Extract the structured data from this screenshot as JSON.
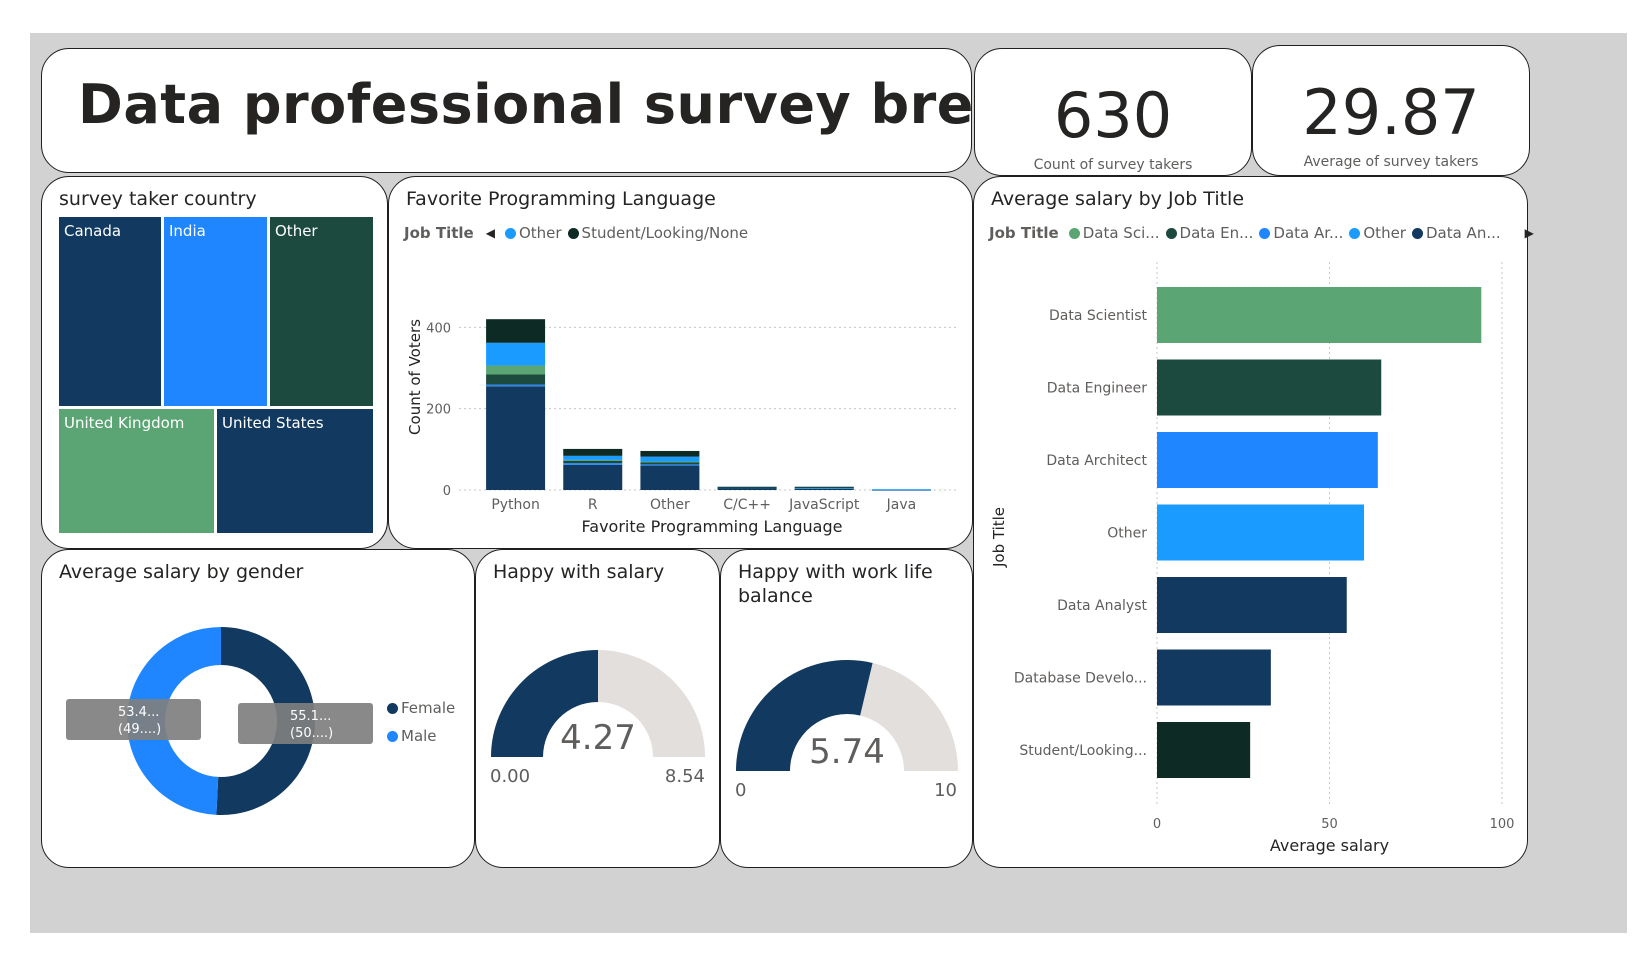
{
  "header": {
    "title": "Data professional survey breakdown",
    "kpis": [
      {
        "value": "630",
        "label": "Count of survey takers"
      },
      {
        "value": "29.87",
        "label": "Average of survey takers"
      }
    ]
  },
  "colors": {
    "dark_navy": "#12395f",
    "blue": "#1f86ff",
    "light_blue": "#1a9bff",
    "dark_green": "#1d4a3f",
    "green": "#5aa573",
    "very_dark": "#0d2a24",
    "gauge_bg": "#e2dfdc"
  },
  "treemap": {
    "title": "survey taker country",
    "cells": [
      {
        "label": "Canada",
        "color": "#12395f"
      },
      {
        "label": "India",
        "color": "#1f86ff"
      },
      {
        "label": "Other",
        "color": "#1d4a3f"
      },
      {
        "label": "United Kingdom",
        "color": "#5aa573"
      },
      {
        "label": "United States",
        "color": "#12395f"
      }
    ]
  },
  "lang_chart": {
    "title": "Favorite Programming Language",
    "legend_title": "Job Title",
    "legend": [
      {
        "name": "Other",
        "color": "#1a9bff"
      },
      {
        "name": "Student/Looking/None",
        "color": "#0d2a24"
      }
    ]
  },
  "salary_job": {
    "title": "Average salary by Job Title",
    "legend_title": "Job Title",
    "legend": [
      {
        "name": "Data Sci...",
        "color": "#5aa573"
      },
      {
        "name": "Data En...",
        "color": "#1d4a3f"
      },
      {
        "name": "Data Ar...",
        "color": "#1f86ff"
      },
      {
        "name": "Other",
        "color": "#1a9bff"
      },
      {
        "name": "Data An...",
        "color": "#12395f"
      }
    ]
  },
  "gender": {
    "title": "Average salary by gender",
    "legend": [
      {
        "name": "Female",
        "color": "#12395f"
      },
      {
        "name": "Male",
        "color": "#1f86ff"
      }
    ],
    "labels": [
      {
        "line1": "53.4...",
        "line2": "(49....)"
      },
      {
        "line1": "55.1...",
        "line2": "(50....)"
      }
    ]
  },
  "happy_salary": {
    "title": "Happy with salary",
    "value": 4.27,
    "min": 0,
    "max": 8.54,
    "value_text": "4.27",
    "min_text": "0.00",
    "max_text": "8.54"
  },
  "happy_wlb": {
    "title": "Happy with work life balance",
    "value": 5.74,
    "min": 0,
    "max": 10,
    "value_text": "5.74",
    "min_text": "0",
    "max_text": "10"
  },
  "chart_data": [
    {
      "type": "bar",
      "stacked": true,
      "title": "Favorite Programming Language",
      "xlabel": "Favorite Programming Language",
      "ylabel": "Count of Voters",
      "categories": [
        "Python",
        "R",
        "Other",
        "C/C++",
        "JavaScript",
        "Java"
      ],
      "ylim": [
        0,
        450
      ],
      "yticks": [
        0,
        200,
        400
      ],
      "grid": true,
      "series": [
        {
          "color": "#12395f",
          "values": [
            255,
            62,
            60,
            5,
            4,
            1
          ]
        },
        {
          "color": "#1f86ff",
          "values": [
            4,
            4,
            3,
            0,
            1,
            0
          ]
        },
        {
          "color": "#1d4a3f",
          "values": [
            25,
            6,
            5,
            1,
            0,
            0
          ]
        },
        {
          "color": "#5aa573",
          "values": [
            22,
            2,
            2,
            0,
            1,
            0
          ]
        },
        {
          "name": "Other",
          "color": "#1a9bff",
          "values": [
            56,
            10,
            12,
            1,
            1,
            1
          ]
        },
        {
          "name": "Student/Looking/None",
          "color": "#0d2a24",
          "values": [
            58,
            17,
            14,
            1,
            1,
            0
          ]
        }
      ]
    },
    {
      "type": "bar",
      "orientation": "horizontal",
      "title": "Average salary by Job Title",
      "xlabel": "Average salary",
      "ylabel": "Job Title",
      "categories": [
        "Data Scientist",
        "Data Engineer",
        "Data Architect",
        "Other",
        "Data Analyst",
        "Database Develo...",
        "Student/Looking..."
      ],
      "values": [
        94,
        65,
        64,
        60,
        55,
        33,
        27
      ],
      "colors": [
        "#5aa573",
        "#1d4a3f",
        "#1f86ff",
        "#1a9bff",
        "#12395f",
        "#12395f",
        "#0d2a24"
      ],
      "xlim": [
        0,
        100
      ],
      "xticks": [
        0,
        50,
        100
      ],
      "grid": true
    },
    {
      "type": "pie",
      "donut": true,
      "title": "Average salary by gender",
      "categories": [
        "Female",
        "Male"
      ],
      "values": [
        55.1,
        53.4
      ],
      "colors": [
        "#12395f",
        "#1f86ff"
      ]
    }
  ]
}
